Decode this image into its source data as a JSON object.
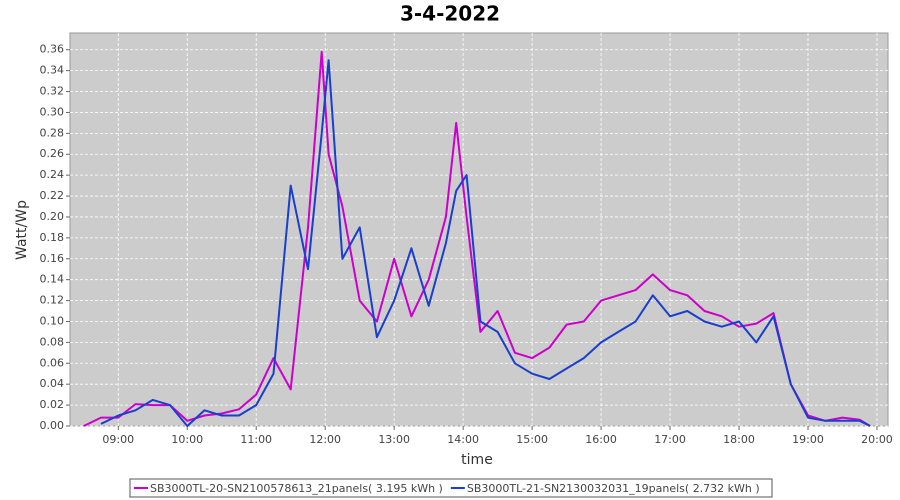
{
  "chart_data": {
    "type": "line",
    "title": "3-4-2022",
    "x_label": "time",
    "y_label": "Watt/Wp",
    "x": [
      8.5,
      8.75,
      9,
      9.25,
      9.5,
      9.75,
      10,
      10.25,
      10.5,
      10.75,
      11,
      11.25,
      11.5,
      11.75,
      11.95,
      12.05,
      12.25,
      12.5,
      12.75,
      13,
      13.25,
      13.5,
      13.75,
      13.9,
      14.05,
      14.25,
      14.5,
      14.75,
      15,
      15.25,
      15.5,
      15.75,
      16,
      16.25,
      16.5,
      16.75,
      17,
      17.25,
      17.5,
      17.75,
      18,
      18.25,
      18.5,
      18.75,
      19,
      19.25,
      19.5,
      19.75,
      19.9
    ],
    "series": [
      {
        "name": "SB3000TL-20-SN2100578613_21panels( 3.195 kWh )",
        "color": "#cc00cc",
        "values": [
          0,
          0.008,
          0.008,
          0.021,
          0.02,
          0.02,
          0.005,
          0.01,
          0.012,
          0.016,
          0.03,
          0.065,
          0.035,
          0.19,
          0.358,
          0.26,
          0.21,
          0.12,
          0.1,
          0.16,
          0.105,
          0.14,
          0.2,
          0.29,
          0.2,
          0.09,
          0.11,
          0.07,
          0.065,
          0.075,
          0.097,
          0.1,
          0.12,
          0.125,
          0.13,
          0.145,
          0.13,
          0.125,
          0.11,
          0.105,
          0.095,
          0.098,
          0.108,
          0.04,
          0.01,
          0.005,
          0.008,
          0.006,
          0
        ]
      },
      {
        "name": "SB3000TL-21-SN2130032031_19panels( 2.732 kWh )",
        "color": "#1a3fcc",
        "values": [
          null,
          0.002,
          0.01,
          0.015,
          0.025,
          0.02,
          0,
          0.015,
          0.01,
          0.01,
          0.02,
          0.05,
          0.23,
          0.15,
          0.28,
          0.35,
          0.16,
          0.19,
          0.085,
          0.12,
          0.17,
          0.115,
          0.175,
          0.225,
          0.24,
          0.1,
          0.09,
          0.06,
          0.05,
          0.045,
          0.055,
          0.065,
          0.08,
          0.09,
          0.1,
          0.125,
          0.105,
          0.11,
          0.1,
          0.095,
          0.1,
          0.08,
          0.105,
          0.04,
          0.008,
          0.005,
          0.005,
          0.005,
          0
        ]
      }
    ],
    "xlim": [
      8.3,
      20.16
    ],
    "xticks": [
      {
        "value": 9,
        "label": "09:00"
      },
      {
        "value": 10,
        "label": "10:00"
      },
      {
        "value": 11,
        "label": "11:00"
      },
      {
        "value": 12,
        "label": "12:00"
      },
      {
        "value": 13,
        "label": "13:00"
      },
      {
        "value": 14,
        "label": "14:00"
      },
      {
        "value": 15,
        "label": "15:00"
      },
      {
        "value": 16,
        "label": "16:00"
      },
      {
        "value": 17,
        "label": "17:00"
      },
      {
        "value": 18,
        "label": "18:00"
      },
      {
        "value": 19,
        "label": "19:00"
      },
      {
        "value": 20,
        "label": "20:00"
      }
    ],
    "ylim": [
      0,
      0.376
    ],
    "yticks": [
      {
        "value": 0,
        "label": "0.00"
      },
      {
        "value": 0.02,
        "label": "0.02"
      },
      {
        "value": 0.04,
        "label": "0.04"
      },
      {
        "value": 0.06,
        "label": "0.06"
      },
      {
        "value": 0.08,
        "label": "0.08"
      },
      {
        "value": 0.1,
        "label": "0.10"
      },
      {
        "value": 0.12,
        "label": "0.12"
      },
      {
        "value": 0.14,
        "label": "0.14"
      },
      {
        "value": 0.16,
        "label": "0.16"
      },
      {
        "value": 0.18,
        "label": "0.18"
      },
      {
        "value": 0.2,
        "label": "0.20"
      },
      {
        "value": 0.22,
        "label": "0.22"
      },
      {
        "value": 0.24,
        "label": "0.24"
      },
      {
        "value": 0.26,
        "label": "0.26"
      },
      {
        "value": 0.28,
        "label": "0.28"
      },
      {
        "value": 0.3,
        "label": "0.30"
      },
      {
        "value": 0.32,
        "label": "0.32"
      },
      {
        "value": 0.34,
        "label": "0.34"
      },
      {
        "value": 0.36,
        "label": "0.36"
      }
    ],
    "grid": true
  }
}
